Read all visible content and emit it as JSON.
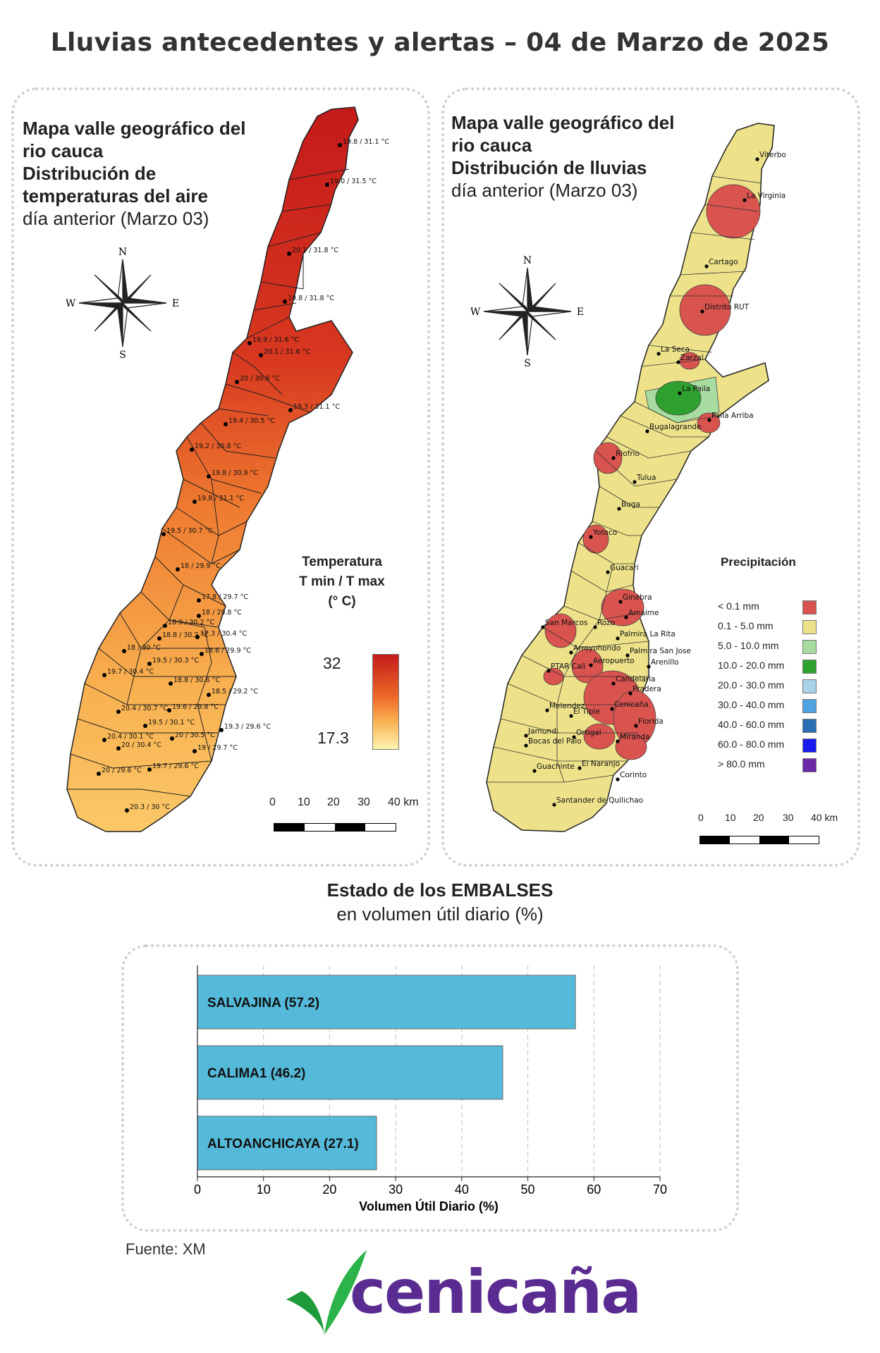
{
  "title": "Lluvias antecedentes y alertas – 04 de Marzo de 2025",
  "temp_map": {
    "title_lines": [
      "Mapa valle geográfico del",
      "rio cauca",
      "Distribución de",
      "temperaturas del aire"
    ],
    "subtitle": "día anterior (Marzo 03)",
    "legend_title_lines": [
      "Temperatura",
      "T min / T max",
      "(° C)"
    ],
    "legend_max": "32",
    "legend_min": "17.3",
    "colors": {
      "high": "#c41a1a",
      "mid": "#ee6a2a",
      "low": "#fff4b0"
    },
    "points": [
      "19.8 / 31.1 °C",
      "19.0 / 31.5 °C",
      "20.1 / 31.8 °C",
      "19.8 / 31.8 °C",
      "19.9 / 31.6 °C",
      "20.1 / 31.6 °C",
      "20 / 30.9 °C",
      "19.3 / 31.1 °C",
      "19.4 / 30.5 °C",
      "19.2 / 30.8 °C",
      "19.8 / 30.9 °C",
      "19.8 / 31.1 °C",
      "19.5 / 30.7 °C",
      "18 / 29.9 °C",
      "17.8 / 29.7 °C",
      "18 / 29.8 °C",
      "18.9 / 30.2 °C",
      "18.8 / 30.2 °C",
      "17.3 / 30.4 °C",
      "18 / 30 °C",
      "18.6 / 29.9 °C",
      "19.7 / 30.4 °C",
      "19.5 / 30.3 °C",
      "18.8 / 30.6 °C",
      "18.5 / 29.2 °C",
      "20.4 / 30.7 °C",
      "19.6 / 29.8 °C",
      "19.5 / 30.1 °C",
      "19.3 / 29.6 °C",
      "20.4 / 30.1 °C",
      "20 / 30.4 °C",
      "20 / 30.5 °C",
      "19 / 29.7 °C",
      "20 / 29.6 °C",
      "19.7 / 29.6 °C",
      "20.3 / 30 °C"
    ]
  },
  "rain_map": {
    "title_lines": [
      "Mapa valle geográfico del",
      "rio cauca"
    ],
    "title_bold": "Distribución de lluvias",
    "subtitle": "día anterior (Marzo 03)",
    "cities": [
      "Viterbo",
      "La Virginia",
      "Cartago",
      "Distrito RUT",
      "La Seca",
      "Zarzal",
      "La Paila",
      "Paila Arriba",
      "Bugalagrande",
      "Riofrio",
      "Tulua",
      "Buga",
      "Yotoco",
      "Guacari",
      "Ginebra",
      "San Marcos",
      "Amaime",
      "Rozo",
      "Palmira La Rita",
      "Arroyohondo",
      "Palmira San Jose",
      "Aeropuerto",
      "Arenillo",
      "PTAR Cali",
      "Candelaria",
      "Pradera",
      "Melendez",
      "El Tiple",
      "Cenicaña",
      "Florida",
      "Jamundi",
      "Bocas del Palo",
      "Ortigal",
      "Miranda",
      "Guachinte",
      "El Naranjo",
      "Corinto",
      "Santander de Quilichao"
    ],
    "legend_title": "Precipitación",
    "legend": [
      {
        "label": "< 0.1 mm",
        "color": "#d9534f"
      },
      {
        "label": "0.1 - 5.0 mm",
        "color": "#ede28a"
      },
      {
        "label": "5.0 - 10.0 mm",
        "color": "#a8dba0"
      },
      {
        "label": "10.0 - 20.0 mm",
        "color": "#2ea02e"
      },
      {
        "label": "20.0 - 30.0 mm",
        "color": "#a9d3e8"
      },
      {
        "label": "30.0 - 40.0 mm",
        "color": "#4ea3e0"
      },
      {
        "label": "40.0 - 60.0 mm",
        "color": "#2b6fb3"
      },
      {
        "label": "60.0 - 80.0 mm",
        "color": "#1a1aee"
      },
      {
        "label": "> 80.0 mm",
        "color": "#6a2aa8"
      }
    ]
  },
  "compass": {
    "n": "N",
    "s": "S",
    "e": "E",
    "w": "W"
  },
  "scale_bar": {
    "ticks": [
      "0",
      "10",
      "20",
      "30",
      "40 km"
    ]
  },
  "reservoirs": {
    "title": "Estado de los EMBALSES",
    "subtitle": "en volumen útil diario (%)",
    "chart_data": {
      "type": "bar",
      "orientation": "horizontal",
      "categories": [
        "SALVAJINA (57.2)",
        "CALIMA1 (46.2)",
        "ALTOANCHICAYA (27.1)"
      ],
      "values": [
        57.2,
        46.2,
        27.1
      ],
      "xlabel": "Volumen Útil Diario (%)",
      "xlim": [
        0,
        70
      ],
      "xticks": [
        "0",
        "10",
        "20",
        "30",
        "40",
        "50",
        "60",
        "70"
      ],
      "bar_color": "#55bada",
      "grid": true
    }
  },
  "source": "Fuente: XM",
  "logo_text": "cenicaña"
}
